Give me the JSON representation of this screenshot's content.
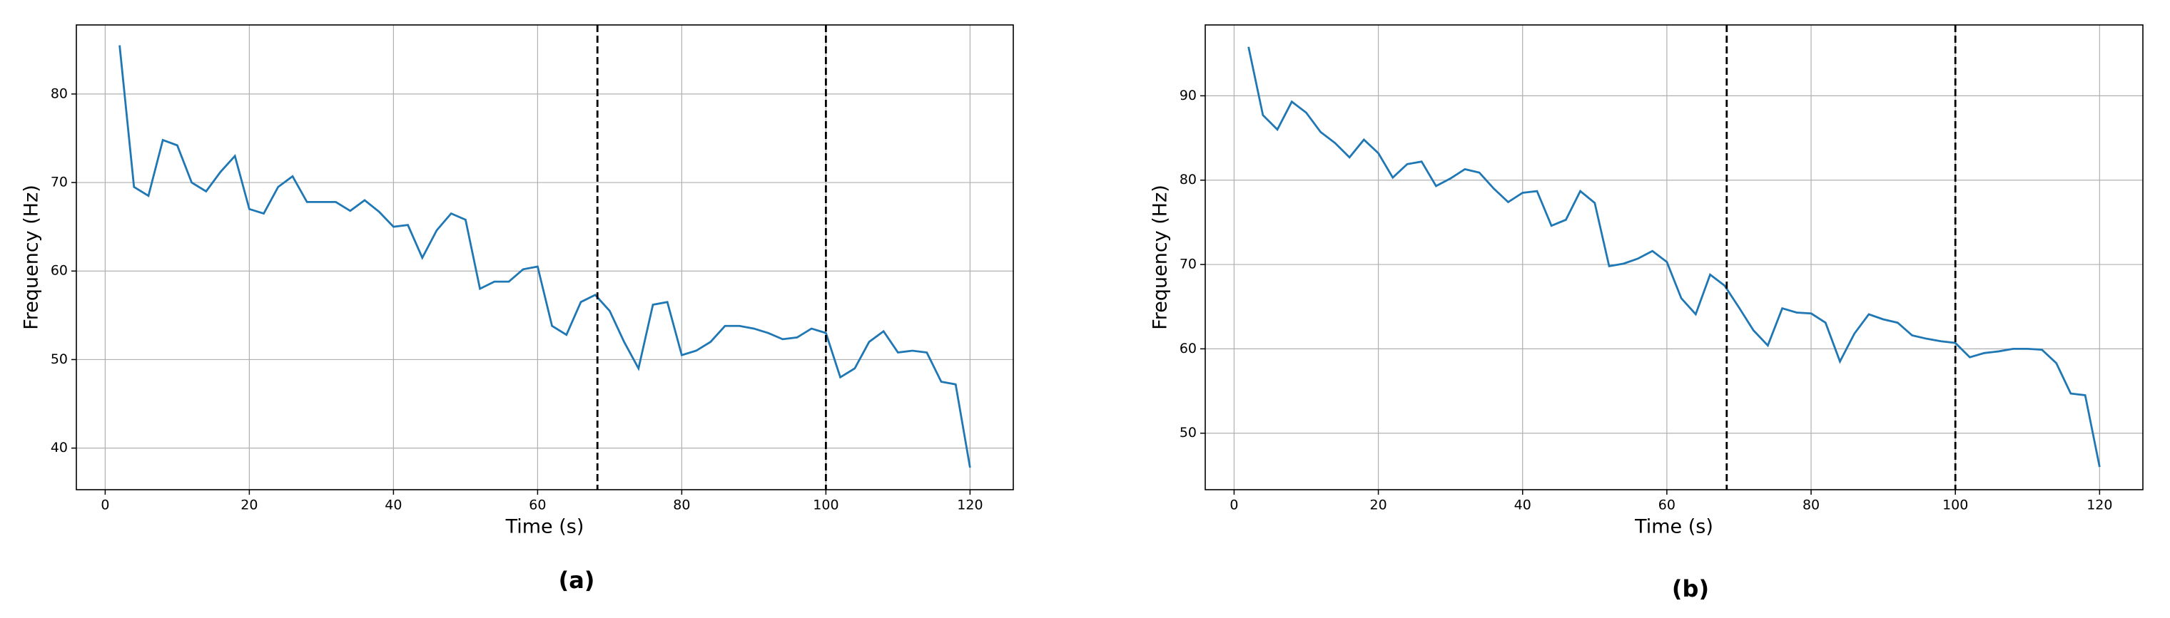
{
  "chart_data": [
    {
      "type": "line",
      "caption": "(a)",
      "x_label": "Time (s)",
      "y_label": "Frequency (Hz)",
      "color": "#1f77b4",
      "grid": true,
      "x": [
        2,
        4,
        6,
        8,
        10,
        12,
        14,
        16,
        18,
        20,
        22,
        24,
        26,
        28,
        30,
        32,
        34,
        36,
        38,
        40,
        42,
        44,
        46,
        48,
        50,
        52,
        54,
        56,
        58,
        60,
        62,
        64,
        66,
        68,
        70,
        72,
        74,
        76,
        78,
        80,
        82,
        84,
        86,
        88,
        90,
        92,
        94,
        96,
        98,
        100,
        102,
        104,
        106,
        108,
        110,
        112,
        114,
        116,
        118,
        120
      ],
      "values": [
        85.5,
        69.5,
        68.5,
        74.8,
        74.2,
        70,
        69,
        71.2,
        73,
        67,
        66.5,
        69.5,
        70.7,
        67.8,
        67.8,
        67.8,
        66.8,
        68,
        66.7,
        65,
        65.2,
        61.5,
        64.6,
        66.5,
        65.8,
        58,
        58.8,
        58.8,
        60.2,
        60.5,
        53.8,
        52.8,
        56.5,
        57.3,
        55.5,
        52,
        49,
        56.2,
        56.5,
        50.5,
        51,
        52,
        53.8,
        53.8,
        53.5,
        53,
        52.3,
        52.5,
        53.5,
        53,
        48,
        49,
        52,
        53.2,
        50.8,
        51,
        50.8,
        47.5,
        47.2,
        37.8
      ],
      "vlines": [
        68.3,
        100
      ],
      "xlim": [
        -4,
        126
      ],
      "xticks": [
        0,
        20,
        40,
        60,
        80,
        100,
        120
      ],
      "ylim": [
        35.3,
        87.8
      ],
      "yticks": [
        40,
        50,
        60,
        70,
        80
      ]
    },
    {
      "type": "line",
      "caption": "(b)",
      "x_label": "Time (s)",
      "y_label": "Frequency (Hz)",
      "color": "#1f77b4",
      "grid": true,
      "x": [
        2,
        4,
        6,
        8,
        10,
        12,
        14,
        16,
        18,
        20,
        22,
        24,
        26,
        28,
        30,
        32,
        34,
        36,
        38,
        40,
        42,
        44,
        46,
        48,
        50,
        52,
        54,
        56,
        58,
        60,
        62,
        64,
        66,
        68,
        70,
        72,
        74,
        76,
        78,
        80,
        82,
        84,
        86,
        88,
        90,
        92,
        94,
        96,
        98,
        100,
        102,
        104,
        106,
        108,
        110,
        112,
        114,
        116,
        118,
        120
      ],
      "values": [
        95.8,
        87.7,
        86,
        89.3,
        88,
        85.7,
        84.4,
        82.7,
        84.8,
        83.2,
        80.3,
        81.9,
        82.2,
        79.3,
        80.2,
        81.3,
        80.9,
        79,
        77.4,
        78.5,
        78.7,
        74.6,
        75.3,
        78.7,
        77.3,
        69.8,
        70.1,
        70.7,
        71.6,
        70.3,
        66,
        64.1,
        68.8,
        67.5,
        64.9,
        62.2,
        60.4,
        64.8,
        64.3,
        64.2,
        63.1,
        58.5,
        61.8,
        64.1,
        63.5,
        63.1,
        61.6,
        61.2,
        60.9,
        60.7,
        59,
        59.5,
        59.7,
        60,
        60,
        59.9,
        58.3,
        54.7,
        54.5,
        46
      ],
      "vlines": [
        68.3,
        100
      ],
      "xlim": [
        -4,
        126
      ],
      "xticks": [
        0,
        20,
        40,
        60,
        80,
        100,
        120
      ],
      "ylim": [
        43.3,
        98.4
      ],
      "yticks": [
        50,
        60,
        70,
        80,
        90
      ]
    }
  ]
}
